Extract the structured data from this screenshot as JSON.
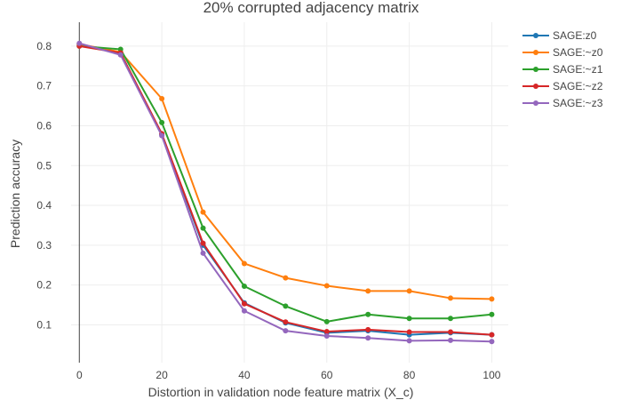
{
  "chart_data": {
    "type": "line",
    "title": "20% corrupted adjacency matrix",
    "xlabel": "Distortion in validation node feature matrix (X_c)",
    "ylabel": "Prediction accuracy",
    "x": [
      0,
      10,
      20,
      30,
      40,
      50,
      60,
      70,
      80,
      90,
      100
    ],
    "xlim": [
      -2,
      104
    ],
    "ylim": [
      0.005,
      0.86
    ],
    "xticks": [
      0,
      20,
      40,
      60,
      80,
      100
    ],
    "yticks": [
      0.1,
      0.2,
      0.3,
      0.4,
      0.5,
      0.6,
      0.7,
      0.8
    ],
    "xtick_labels": [
      "0",
      "20",
      "40",
      "60",
      "80",
      "100"
    ],
    "ytick_labels": [
      "0.1",
      "0.2",
      "0.3",
      "0.4",
      "0.5",
      "0.6",
      "0.7",
      "0.8"
    ],
    "grid": true,
    "legend_position": "top-right",
    "series": [
      {
        "name": "SAGE:z0",
        "color": "#1f77b4",
        "values": [
          0.805,
          0.78,
          0.578,
          0.3,
          0.155,
          0.105,
          0.08,
          0.085,
          0.075,
          0.08,
          0.075
        ]
      },
      {
        "name": "SAGE:~z0",
        "color": "#ff7f0e",
        "values": [
          0.805,
          0.785,
          0.668,
          0.383,
          0.254,
          0.218,
          0.198,
          0.185,
          0.185,
          0.167,
          0.165
        ]
      },
      {
        "name": "SAGE:~z1",
        "color": "#2ca02c",
        "values": [
          0.8,
          0.792,
          0.608,
          0.343,
          0.197,
          0.147,
          0.108,
          0.126,
          0.116,
          0.116,
          0.126
        ]
      },
      {
        "name": "SAGE:~z2",
        "color": "#d62728",
        "values": [
          0.8,
          0.783,
          0.58,
          0.305,
          0.153,
          0.107,
          0.083,
          0.088,
          0.082,
          0.082,
          0.075
        ]
      },
      {
        "name": "SAGE:~z3",
        "color": "#9467bd",
        "values": [
          0.807,
          0.778,
          0.575,
          0.28,
          0.135,
          0.085,
          0.072,
          0.067,
          0.06,
          0.061,
          0.058
        ]
      }
    ]
  }
}
